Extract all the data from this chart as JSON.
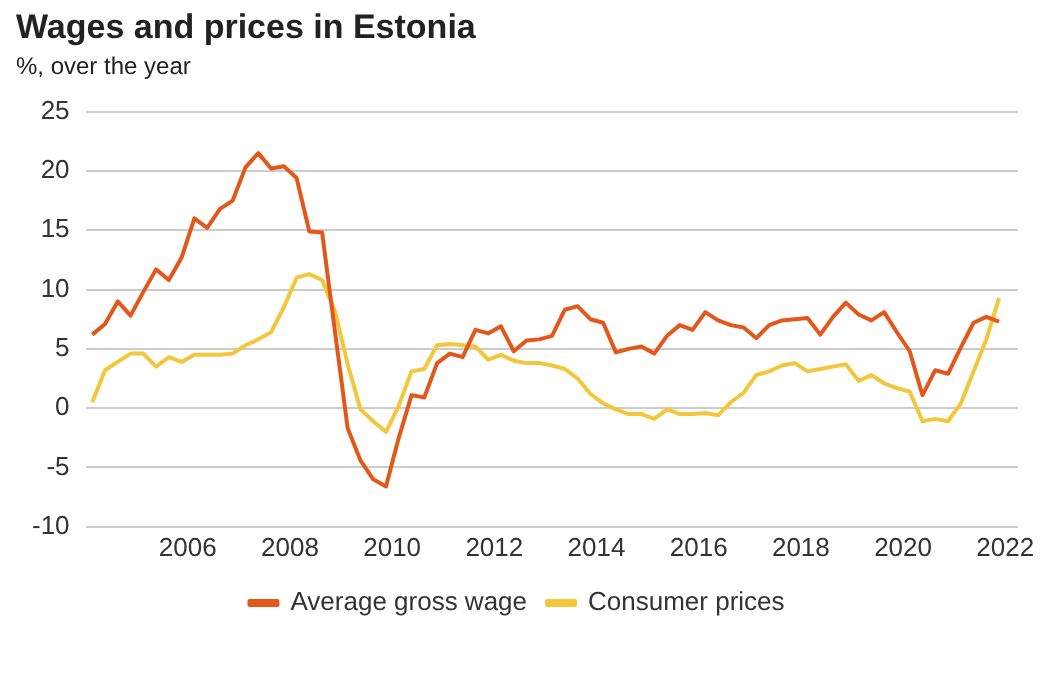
{
  "chart_data": {
    "type": "line",
    "title": "Wages and prices in Estonia",
    "subtitle": "%, over the year",
    "x": [
      2004.13,
      2004.38,
      2004.63,
      2004.88,
      2005.13,
      2005.38,
      2005.63,
      2005.88,
      2006.13,
      2006.38,
      2006.63,
      2006.88,
      2007.13,
      2007.38,
      2007.63,
      2007.88,
      2008.13,
      2008.38,
      2008.63,
      2008.88,
      2009.13,
      2009.38,
      2009.63,
      2009.88,
      2010.13,
      2010.38,
      2010.63,
      2010.88,
      2011.13,
      2011.38,
      2011.63,
      2011.88,
      2012.13,
      2012.38,
      2012.63,
      2012.88,
      2013.13,
      2013.38,
      2013.63,
      2013.88,
      2014.13,
      2014.38,
      2014.63,
      2014.88,
      2015.13,
      2015.38,
      2015.63,
      2015.88,
      2016.13,
      2016.38,
      2016.63,
      2016.88,
      2017.13,
      2017.38,
      2017.63,
      2017.88,
      2018.13,
      2018.38,
      2018.63,
      2018.88,
      2019.13,
      2019.38,
      2019.63,
      2019.88,
      2020.13,
      2020.38,
      2020.63,
      2020.88,
      2021.13,
      2021.38,
      2021.63,
      2021.88
    ],
    "series": [
      {
        "name": "Average gross wage",
        "color": "#e4571b",
        "values": [
          6.2,
          7.1,
          9.0,
          7.8,
          9.8,
          11.7,
          10.8,
          12.7,
          16.0,
          15.2,
          16.8,
          17.5,
          20.3,
          21.5,
          20.2,
          20.4,
          19.4,
          14.9,
          14.8,
          6.5,
          -1.7,
          -4.4,
          -6.0,
          -6.6,
          -2.5,
          1.1,
          0.9,
          3.8,
          4.6,
          4.3,
          6.6,
          6.3,
          6.9,
          4.8,
          5.7,
          5.8,
          6.1,
          8.3,
          8.6,
          7.5,
          7.2,
          4.7,
          5.0,
          5.2,
          4.6,
          6.1,
          7.0,
          6.6,
          8.1,
          7.4,
          7.0,
          6.8,
          5.9,
          7.0,
          7.4,
          7.5,
          7.6,
          6.2,
          7.7,
          8.9,
          7.9,
          7.4,
          8.1,
          6.4,
          4.8,
          1.1,
          3.2,
          2.9,
          5.1,
          7.2,
          7.7,
          7.3
        ]
      },
      {
        "name": "Consumer prices",
        "color": "#f2c73c",
        "values": [
          0.5,
          3.2,
          3.9,
          4.6,
          4.6,
          3.5,
          4.3,
          3.9,
          4.5,
          4.5,
          4.5,
          4.6,
          5.3,
          5.8,
          6.4,
          8.5,
          11.0,
          11.3,
          10.8,
          8.2,
          3.7,
          -0.1,
          -1.1,
          -2.0,
          0.2,
          3.1,
          3.3,
          5.3,
          5.4,
          5.3,
          5.2,
          4.1,
          4.5,
          4.0,
          3.8,
          3.8,
          3.6,
          3.3,
          2.5,
          1.2,
          0.4,
          -0.1,
          -0.5,
          -0.5,
          -0.9,
          -0.1,
          -0.5,
          -0.5,
          -0.4,
          -0.6,
          0.5,
          1.3,
          2.8,
          3.1,
          3.6,
          3.8,
          3.1,
          3.3,
          3.5,
          3.7,
          2.3,
          2.8,
          2.1,
          1.7,
          1.4,
          -1.1,
          -0.9,
          -1.1,
          0.4,
          3.1,
          5.8,
          9.3
        ]
      }
    ],
    "xlim": [
      2004,
      2022.25
    ],
    "xticks": [
      2006,
      2008,
      2010,
      2012,
      2014,
      2016,
      2018,
      2020,
      2022
    ],
    "ylim": [
      -10,
      25
    ],
    "yticks": [
      -10,
      -5,
      0,
      5,
      10,
      15,
      20,
      25
    ],
    "grid": "y",
    "legend": "bottom",
    "marker": "none",
    "line_style": "solid"
  }
}
